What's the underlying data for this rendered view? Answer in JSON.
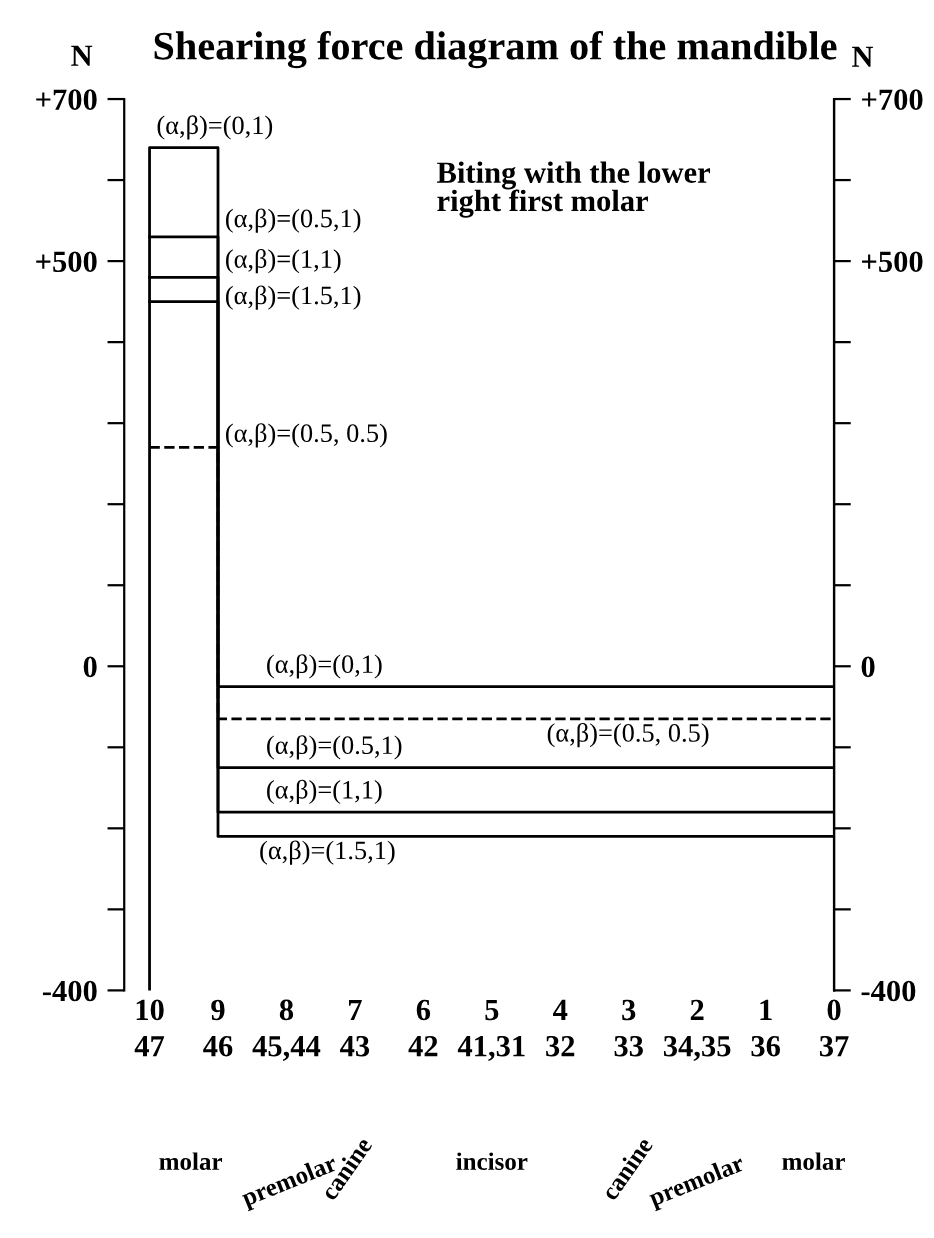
{
  "chart_data": {
    "type": "line",
    "title": "Shearing force diagram of the mandible",
    "ylabel": "N",
    "y2label": "N",
    "xlim": [
      10.37,
      0
    ],
    "xticks": [
      10,
      9,
      8,
      7,
      6,
      5,
      4,
      3,
      2,
      1,
      0
    ],
    "ylim": [
      -400,
      700
    ],
    "yticks": [
      {
        "value": -400,
        "label": "-400"
      },
      {
        "value": -300,
        "label": null
      },
      {
        "value": -200,
        "label": null
      },
      {
        "value": -100,
        "label": null
      },
      {
        "value": 0,
        "label": "0"
      },
      {
        "value": 100,
        "label": null
      },
      {
        "value": 200,
        "label": null
      },
      {
        "value": 300,
        "label": null
      },
      {
        "value": 400,
        "label": null
      },
      {
        "value": 500,
        "label": "+500"
      },
      {
        "value": 600,
        "label": null
      },
      {
        "value": 700,
        "label": "+700"
      }
    ],
    "y2lim": [
      -400,
      700
    ],
    "y2ticks": [
      {
        "value": -400,
        "label": "-400"
      },
      {
        "value": -300,
        "label": null
      },
      {
        "value": -200,
        "label": null
      },
      {
        "value": -100,
        "label": null
      },
      {
        "value": 0,
        "label": "0"
      },
      {
        "value": 100,
        "label": null
      },
      {
        "value": 200,
        "label": null
      },
      {
        "value": 300,
        "label": null
      },
      {
        "value": 400,
        "label": null
      },
      {
        "value": 500,
        "label": "+500"
      },
      {
        "value": 600,
        "label": null
      },
      {
        "value": 700,
        "label": "+700"
      }
    ],
    "marker": "none",
    "series": [
      {
        "color": "#000000",
        "x": [
          10,
          10,
          9,
          9,
          0
        ],
        "values": [
          -400,
          640,
          640,
          -25,
          -25
        ],
        "line_style": "solid"
      },
      {
        "color": "#000000",
        "x": [
          10,
          9,
          9,
          0
        ],
        "values": [
          530,
          530,
          -125,
          -125
        ],
        "line_style": "solid"
      },
      {
        "color": "#000000",
        "x": [
          10,
          9,
          9,
          0
        ],
        "values": [
          480,
          480,
          -180,
          -180
        ],
        "line_style": "solid"
      },
      {
        "color": "#000000",
        "x": [
          10,
          9,
          9,
          0
        ],
        "values": [
          450,
          450,
          -210,
          -210
        ],
        "line_style": "solid"
      },
      {
        "color": "#000000",
        "x": [
          10,
          9,
          9,
          0
        ],
        "values": [
          270,
          270,
          -65,
          -65
        ],
        "line_style": "dashed"
      }
    ],
    "annotations": [
      "Biting with the lower\nright first molar",
      {
        "text": "(α,β)=(0,1)",
        "x": 9.9,
        "y": 650
      },
      {
        "text": "(α,β)=(0.5,1)",
        "x": 8.9,
        "y": 535
      },
      {
        "text": "(α,β)=(1,1)",
        "x": 8.9,
        "y": 485
      },
      {
        "text": "(α,β)=(1.5,1)",
        "x": 8.9,
        "y": 440
      },
      {
        "text": "(α,β)=(0.5, 0.5)",
        "x": 8.9,
        "y": 270
      },
      {
        "text": "(α,β)=(0,1)",
        "x": 8.3,
        "y": -15
      },
      "(α,β)=(0.5, 0.5)",
      {
        "text": "(α,β)=(0.5,1)",
        "x": 8.3,
        "y": -115
      },
      {
        "text": "(α,β)=(1,1)",
        "x": 8.3,
        "y": -170
      },
      "(α,β)=(1.5,1)",
      "47",
      "46",
      "45,44",
      "43",
      "42",
      "41,31",
      "32",
      "33",
      "34,35",
      "36",
      "37",
      "molar",
      "premolar",
      "canine",
      "incisor",
      "canine",
      "premolar",
      "molar"
    ]
  }
}
